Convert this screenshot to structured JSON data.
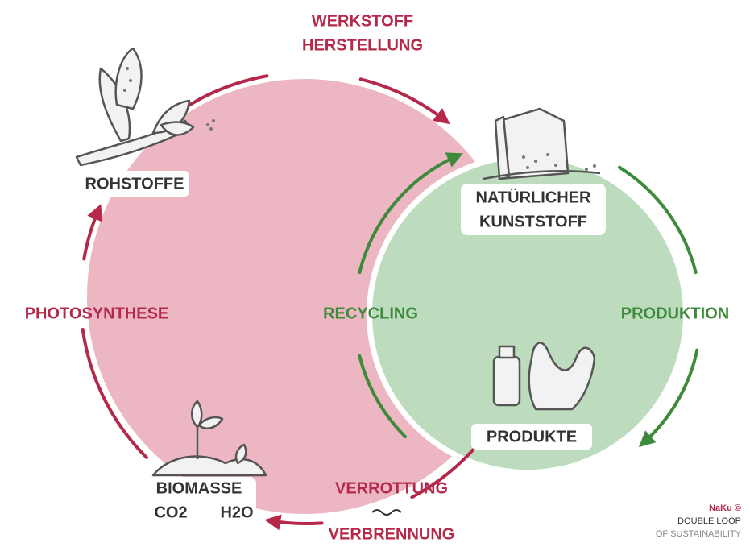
{
  "nodes": [
    {
      "lines": [
        "ROHSTOFFE"
      ]
    },
    {
      "lines": [
        "NATÜRLICHER",
        "KUNSTSTOFF"
      ]
    },
    {
      "lines": [
        "PRODUKTE"
      ]
    },
    {
      "lines": [
        "BIOMASSE"
      ],
      "compounds": [
        "CO2",
        "H2O"
      ]
    }
  ],
  "edges": [
    {
      "lines": [
        "WERKSTOFF",
        "HERSTELLUNG"
      ]
    },
    {
      "lines": [
        "PHOTOSYNTHESE"
      ]
    },
    {
      "lines": [
        "VERROTTUNG"
      ]
    },
    {
      "lines": [
        "VERBRENNUNG"
      ]
    },
    {
      "lines": [
        "RECYCLING"
      ]
    },
    {
      "lines": [
        "PRODUKTION"
      ]
    }
  ],
  "credit": {
    "lines": [
      "NaKu ©",
      "DOUBLE LOOP",
      "OF SUSTAINABILITY"
    ]
  }
}
